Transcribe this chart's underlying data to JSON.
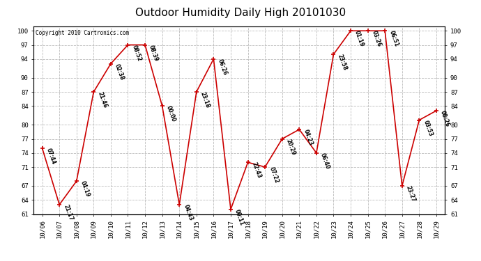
{
  "title": "Outdoor Humidity Daily High 20101030",
  "copyright": "Copyright 2010 Cartronics.com",
  "x_labels": [
    "10/06",
    "10/07",
    "10/08",
    "10/09",
    "10/10",
    "10/11",
    "10/12",
    "10/13",
    "10/14",
    "10/15",
    "10/16",
    "10/17",
    "10/18",
    "10/19",
    "10/20",
    "10/21",
    "10/22",
    "10/23",
    "10/24",
    "10/25",
    "10/26",
    "10/27",
    "10/28",
    "10/29"
  ],
  "x_values": [
    0,
    1,
    2,
    3,
    4,
    5,
    6,
    7,
    8,
    9,
    10,
    11,
    12,
    13,
    14,
    15,
    16,
    17,
    18,
    19,
    20,
    21,
    22,
    23
  ],
  "y_values": [
    75,
    63,
    68,
    87,
    93,
    97,
    97,
    84,
    63,
    87,
    94,
    62,
    72,
    71,
    77,
    79,
    74,
    95,
    100,
    100,
    100,
    67,
    81,
    83
  ],
  "point_labels": [
    "07:44",
    "21:17",
    "04:19",
    "21:46",
    "02:38",
    "08:52",
    "08:39",
    "00:00",
    "04:43",
    "23:18",
    "06:26",
    "00:11",
    "22:43",
    "07:22",
    "20:29",
    "04:23",
    "06:40",
    "23:58",
    "01:19",
    "03:26",
    "06:51",
    "23:27",
    "03:53",
    "08:26"
  ],
  "ylim_min": 61,
  "ylim_max": 101,
  "yticks": [
    61,
    64,
    67,
    71,
    74,
    77,
    80,
    84,
    87,
    90,
    94,
    97,
    100
  ],
  "line_color": "#cc0000",
  "marker_color": "#cc0000",
  "bg_color": "#ffffff",
  "grid_color": "#bbbbbb",
  "title_fontsize": 11,
  "label_fontsize": 5.5,
  "tick_fontsize": 6.5,
  "copyright_fontsize": 5.5
}
